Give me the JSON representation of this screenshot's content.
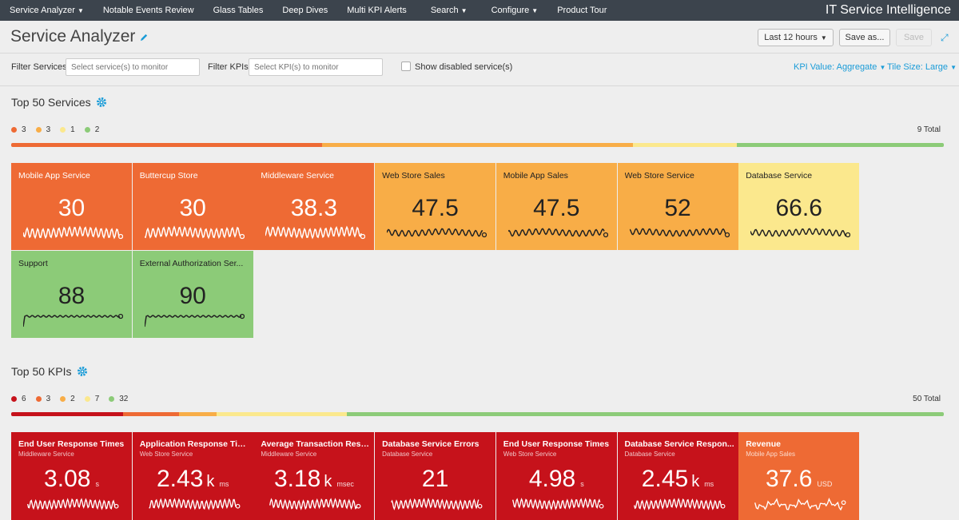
{
  "nav": {
    "items": [
      "Service Analyzer",
      "Notable Events Review",
      "Glass Tables",
      "Deep Dives",
      "Multi KPI Alerts",
      "Search",
      "Configure",
      "Product Tour"
    ],
    "brand": "IT Service Intelligence"
  },
  "header": {
    "title": "Service Analyzer",
    "time_range": "Last 12 hours",
    "save_as": "Save as...",
    "save": "Save"
  },
  "filters": {
    "services_label": "Filter Services",
    "services_placeholder": "Select service(s) to monitor",
    "kpis_label": "Filter KPIs",
    "kpis_placeholder": "Select KPI(s) to monitor",
    "show_disabled": "Show disabled service(s)",
    "kpi_value": "KPI Value: Aggregate",
    "tile_size": "Tile Size: Large"
  },
  "colors": {
    "critical": "#c6121b",
    "high": "#ee6a34",
    "medium": "#f8ad47",
    "low": "#fbe88d",
    "normal": "#8ccb78"
  },
  "services_section": {
    "title": "Top 50 Services",
    "legend": [
      {
        "count": "3",
        "color": "#ee6a34"
      },
      {
        "count": "3",
        "color": "#f8ad47"
      },
      {
        "count": "1",
        "color": "#fbe88d"
      },
      {
        "count": "2",
        "color": "#8ccb78"
      }
    ],
    "total": "9 Total",
    "tiles": [
      {
        "name": "Mobile App Service",
        "value": "30",
        "severity": "high"
      },
      {
        "name": "Buttercup Store",
        "value": "30",
        "severity": "high"
      },
      {
        "name": "Middleware Service",
        "value": "38.3",
        "severity": "high"
      },
      {
        "name": "Web Store Sales",
        "value": "47.5",
        "severity": "medium"
      },
      {
        "name": "Mobile App Sales",
        "value": "47.5",
        "severity": "medium"
      },
      {
        "name": "Web Store Service",
        "value": "52",
        "severity": "medium"
      },
      {
        "name": "Database Service",
        "value": "66.6",
        "severity": "low"
      },
      {
        "name": "Support",
        "value": "88",
        "severity": "normal"
      },
      {
        "name": "External Authorization Ser...",
        "value": "90",
        "severity": "normal"
      }
    ]
  },
  "kpis_section": {
    "title": "Top 50 KPIs",
    "legend": [
      {
        "count": "6",
        "color": "#c6121b"
      },
      {
        "count": "3",
        "color": "#ee6a34"
      },
      {
        "count": "2",
        "color": "#f8ad47"
      },
      {
        "count": "7",
        "color": "#fbe88d"
      },
      {
        "count": "32",
        "color": "#8ccb78"
      }
    ],
    "total": "50 Total",
    "tiles": [
      {
        "name": "End User Response Times",
        "service": "Middleware Service",
        "value": "3.08",
        "suffix": "",
        "unit": "s",
        "severity": "critical"
      },
      {
        "name": "Application Response Tim...",
        "service": "Web Store Service",
        "value": "2.43",
        "suffix": "k",
        "unit": "ms",
        "severity": "critical"
      },
      {
        "name": "Average Transaction Resp...",
        "service": "Middleware Service",
        "value": "3.18",
        "suffix": "k",
        "unit": "msec",
        "severity": "critical"
      },
      {
        "name": "Database Service Errors",
        "service": "Database Service",
        "value": "21",
        "suffix": "",
        "unit": "",
        "severity": "critical"
      },
      {
        "name": "End User Response Times",
        "service": "Web Store Service",
        "value": "4.98",
        "suffix": "",
        "unit": "s",
        "severity": "critical"
      },
      {
        "name": "Database Service Respon...",
        "service": "Database Service",
        "value": "2.45",
        "suffix": "k",
        "unit": "ms",
        "severity": "critical"
      },
      {
        "name": "Revenue",
        "service": "Mobile App Sales",
        "value": "37.6",
        "suffix": "",
        "unit": "USD",
        "severity": "high"
      }
    ]
  }
}
